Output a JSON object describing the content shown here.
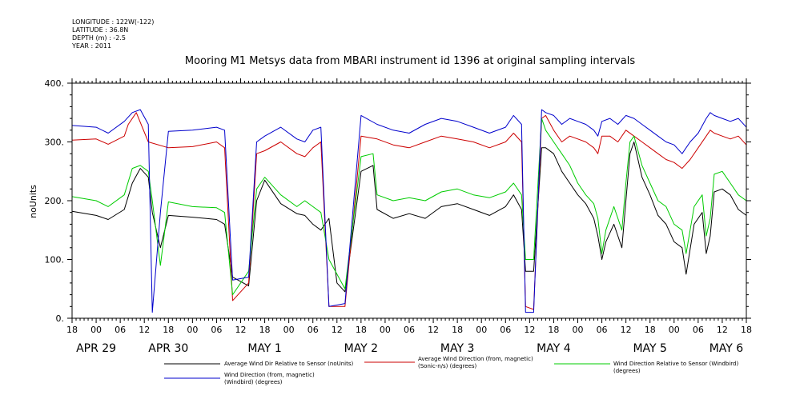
{
  "header": {
    "lines": [
      "LONGITUDE : 122W(-122)",
      "LATITUDE : 36.8N",
      "DEPTH (m) : -2.5",
      "YEAR : 2011"
    ]
  },
  "chart_data": {
    "type": "line",
    "title": "Mooring M1 Metsys data from MBARI instrument id 1396 at original sampling intervals",
    "ylabel": "noUnits",
    "xlabel": "",
    "ylim": [
      0,
      400
    ],
    "yticks": [
      0,
      100,
      200,
      300,
      400
    ],
    "yticklabels": [
      "0.",
      "100.",
      "200.",
      "300.",
      "400."
    ],
    "xlim": [
      0,
      168
    ],
    "hour_ticks": [
      "18",
      "00",
      "06",
      "12",
      "18",
      "00",
      "06",
      "12",
      "18",
      "00",
      "06",
      "12",
      "18",
      "00",
      "06",
      "12",
      "18",
      "00",
      "06",
      "12",
      "18",
      "00",
      "06",
      "12",
      "18",
      "00",
      "06",
      "12",
      "18"
    ],
    "day_labels": [
      {
        "x": 6,
        "label": "APR 29"
      },
      {
        "x": 24,
        "label": "APR 30"
      },
      {
        "x": 48,
        "label": "MAY  1"
      },
      {
        "x": 72,
        "label": "MAY  2"
      },
      {
        "x": 96,
        "label": "MAY  3"
      },
      {
        "x": 120,
        "label": "MAY  4"
      },
      {
        "x": 144,
        "label": "MAY  5"
      },
      {
        "x": 163,
        "label": "MAY  6"
      }
    ],
    "grid": false,
    "legend_position": "bottom",
    "series": [
      {
        "name": "Average Wind Dir Relative to Sensor (noUnits)",
        "color": "#000000",
        "points": [
          [
            0,
            182
          ],
          [
            6,
            175
          ],
          [
            9,
            168
          ],
          [
            13,
            185
          ],
          [
            15,
            230
          ],
          [
            17,
            255
          ],
          [
            19,
            240
          ],
          [
            20,
            180
          ],
          [
            22,
            120
          ],
          [
            24,
            175
          ],
          [
            30,
            172
          ],
          [
            36,
            168
          ],
          [
            38,
            160
          ],
          [
            40,
            70
          ],
          [
            44,
            55
          ],
          [
            46,
            200
          ],
          [
            48,
            235
          ],
          [
            52,
            195
          ],
          [
            56,
            178
          ],
          [
            58,
            175
          ],
          [
            60,
            160
          ],
          [
            62,
            150
          ],
          [
            64,
            170
          ],
          [
            66,
            60
          ],
          [
            68,
            45
          ],
          [
            72,
            250
          ],
          [
            75,
            260
          ],
          [
            76,
            185
          ],
          [
            80,
            170
          ],
          [
            84,
            178
          ],
          [
            88,
            170
          ],
          [
            92,
            190
          ],
          [
            96,
            195
          ],
          [
            100,
            185
          ],
          [
            104,
            175
          ],
          [
            108,
            190
          ],
          [
            110,
            210
          ],
          [
            112,
            185
          ],
          [
            113,
            80
          ],
          [
            115,
            80
          ],
          [
            117,
            290
          ],
          [
            118,
            290
          ],
          [
            120,
            280
          ],
          [
            122,
            250
          ],
          [
            124,
            230
          ],
          [
            126,
            210
          ],
          [
            128,
            195
          ],
          [
            130,
            170
          ],
          [
            131,
            140
          ],
          [
            132,
            100
          ],
          [
            133,
            130
          ],
          [
            135,
            160
          ],
          [
            137,
            120
          ],
          [
            138,
            200
          ],
          [
            139,
            280
          ],
          [
            140,
            300
          ],
          [
            142,
            240
          ],
          [
            144,
            210
          ],
          [
            146,
            175
          ],
          [
            148,
            160
          ],
          [
            150,
            130
          ],
          [
            152,
            120
          ],
          [
            153,
            75
          ],
          [
            155,
            160
          ],
          [
            157,
            180
          ],
          [
            158,
            110
          ],
          [
            159,
            140
          ],
          [
            160,
            215
          ],
          [
            162,
            220
          ],
          [
            164,
            210
          ],
          [
            166,
            185
          ],
          [
            168,
            175
          ]
        ]
      },
      {
        "name": "Average Wind Direction (from, magnetic) (Sonic-n/s) (degrees)",
        "color": "#cc0000",
        "points": [
          [
            0,
            303
          ],
          [
            6,
            305
          ],
          [
            9,
            296
          ],
          [
            13,
            310
          ],
          [
            14,
            330
          ],
          [
            16,
            350
          ],
          [
            19,
            300
          ],
          [
            24,
            290
          ],
          [
            30,
            292
          ],
          [
            36,
            300
          ],
          [
            38,
            290
          ],
          [
            40,
            30
          ],
          [
            44,
            60
          ],
          [
            46,
            280
          ],
          [
            48,
            285
          ],
          [
            52,
            300
          ],
          [
            56,
            280
          ],
          [
            58,
            275
          ],
          [
            60,
            290
          ],
          [
            62,
            300
          ],
          [
            64,
            20
          ],
          [
            68,
            20
          ],
          [
            72,
            310
          ],
          [
            76,
            305
          ],
          [
            80,
            295
          ],
          [
            84,
            290
          ],
          [
            88,
            300
          ],
          [
            92,
            310
          ],
          [
            96,
            305
          ],
          [
            100,
            300
          ],
          [
            104,
            290
          ],
          [
            108,
            300
          ],
          [
            110,
            315
          ],
          [
            112,
            300
          ],
          [
            113,
            20
          ],
          [
            115,
            15
          ],
          [
            117,
            340
          ],
          [
            118,
            345
          ],
          [
            120,
            320
          ],
          [
            122,
            300
          ],
          [
            124,
            310
          ],
          [
            126,
            305
          ],
          [
            128,
            300
          ],
          [
            130,
            290
          ],
          [
            131,
            280
          ],
          [
            132,
            310
          ],
          [
            134,
            310
          ],
          [
            136,
            300
          ],
          [
            138,
            320
          ],
          [
            140,
            310
          ],
          [
            142,
            300
          ],
          [
            144,
            290
          ],
          [
            146,
            280
          ],
          [
            148,
            270
          ],
          [
            150,
            265
          ],
          [
            152,
            255
          ],
          [
            154,
            270
          ],
          [
            156,
            290
          ],
          [
            158,
            310
          ],
          [
            159,
            320
          ],
          [
            160,
            315
          ],
          [
            162,
            310
          ],
          [
            164,
            305
          ],
          [
            166,
            310
          ],
          [
            168,
            295
          ]
        ]
      },
      {
        "name": "Wind Direction Relative to Sensor (Windbird) (degrees)",
        "color": "#00cc00",
        "points": [
          [
            0,
            207
          ],
          [
            6,
            200
          ],
          [
            9,
            190
          ],
          [
            13,
            210
          ],
          [
            15,
            255
          ],
          [
            17,
            260
          ],
          [
            19,
            250
          ],
          [
            20,
            200
          ],
          [
            22,
            90
          ],
          [
            24,
            198
          ],
          [
            30,
            190
          ],
          [
            36,
            188
          ],
          [
            38,
            180
          ],
          [
            40,
            40
          ],
          [
            44,
            80
          ],
          [
            46,
            220
          ],
          [
            48,
            240
          ],
          [
            52,
            210
          ],
          [
            56,
            190
          ],
          [
            58,
            200
          ],
          [
            60,
            190
          ],
          [
            62,
            180
          ],
          [
            64,
            100
          ],
          [
            68,
            50
          ],
          [
            72,
            275
          ],
          [
            75,
            280
          ],
          [
            76,
            210
          ],
          [
            80,
            200
          ],
          [
            84,
            205
          ],
          [
            88,
            200
          ],
          [
            92,
            215
          ],
          [
            96,
            220
          ],
          [
            100,
            210
          ],
          [
            104,
            205
          ],
          [
            108,
            215
          ],
          [
            110,
            230
          ],
          [
            112,
            210
          ],
          [
            113,
            100
          ],
          [
            115,
            100
          ],
          [
            117,
            340
          ],
          [
            118,
            320
          ],
          [
            120,
            300
          ],
          [
            122,
            280
          ],
          [
            124,
            260
          ],
          [
            126,
            230
          ],
          [
            128,
            210
          ],
          [
            130,
            195
          ],
          [
            131,
            170
          ],
          [
            132,
            110
          ],
          [
            133,
            150
          ],
          [
            135,
            190
          ],
          [
            137,
            150
          ],
          [
            138,
            230
          ],
          [
            139,
            300
          ],
          [
            140,
            310
          ],
          [
            142,
            260
          ],
          [
            144,
            230
          ],
          [
            146,
            200
          ],
          [
            148,
            190
          ],
          [
            150,
            160
          ],
          [
            152,
            150
          ],
          [
            153,
            110
          ],
          [
            155,
            190
          ],
          [
            157,
            210
          ],
          [
            158,
            140
          ],
          [
            159,
            170
          ],
          [
            160,
            245
          ],
          [
            162,
            250
          ],
          [
            164,
            230
          ],
          [
            166,
            210
          ],
          [
            168,
            200
          ]
        ]
      },
      {
        "name": "Wind Direction (from, magnetic) (Windbird) (degrees)",
        "color": "#0000cc",
        "points": [
          [
            0,
            328
          ],
          [
            6,
            325
          ],
          [
            9,
            315
          ],
          [
            13,
            335
          ],
          [
            15,
            350
          ],
          [
            17,
            355
          ],
          [
            19,
            330
          ],
          [
            20,
            10
          ],
          [
            22,
            180
          ],
          [
            24,
            318
          ],
          [
            30,
            320
          ],
          [
            36,
            325
          ],
          [
            38,
            320
          ],
          [
            40,
            65
          ],
          [
            44,
            70
          ],
          [
            46,
            300
          ],
          [
            48,
            310
          ],
          [
            52,
            325
          ],
          [
            56,
            305
          ],
          [
            58,
            300
          ],
          [
            60,
            320
          ],
          [
            62,
            325
          ],
          [
            64,
            20
          ],
          [
            68,
            25
          ],
          [
            72,
            345
          ],
          [
            76,
            330
          ],
          [
            80,
            320
          ],
          [
            84,
            315
          ],
          [
            88,
            330
          ],
          [
            92,
            340
          ],
          [
            96,
            335
          ],
          [
            100,
            325
          ],
          [
            104,
            315
          ],
          [
            108,
            325
          ],
          [
            110,
            345
          ],
          [
            112,
            330
          ],
          [
            113,
            10
          ],
          [
            115,
            10
          ],
          [
            117,
            355
          ],
          [
            118,
            350
          ],
          [
            120,
            345
          ],
          [
            122,
            330
          ],
          [
            124,
            340
          ],
          [
            126,
            335
          ],
          [
            128,
            330
          ],
          [
            130,
            320
          ],
          [
            131,
            310
          ],
          [
            132,
            335
          ],
          [
            134,
            340
          ],
          [
            136,
            330
          ],
          [
            138,
            345
          ],
          [
            140,
            340
          ],
          [
            142,
            330
          ],
          [
            144,
            320
          ],
          [
            146,
            310
          ],
          [
            148,
            300
          ],
          [
            150,
            295
          ],
          [
            152,
            280
          ],
          [
            154,
            300
          ],
          [
            156,
            315
          ],
          [
            158,
            340
          ],
          [
            159,
            350
          ],
          [
            160,
            345
          ],
          [
            162,
            340
          ],
          [
            164,
            335
          ],
          [
            166,
            340
          ],
          [
            168,
            325
          ]
        ]
      }
    ]
  }
}
